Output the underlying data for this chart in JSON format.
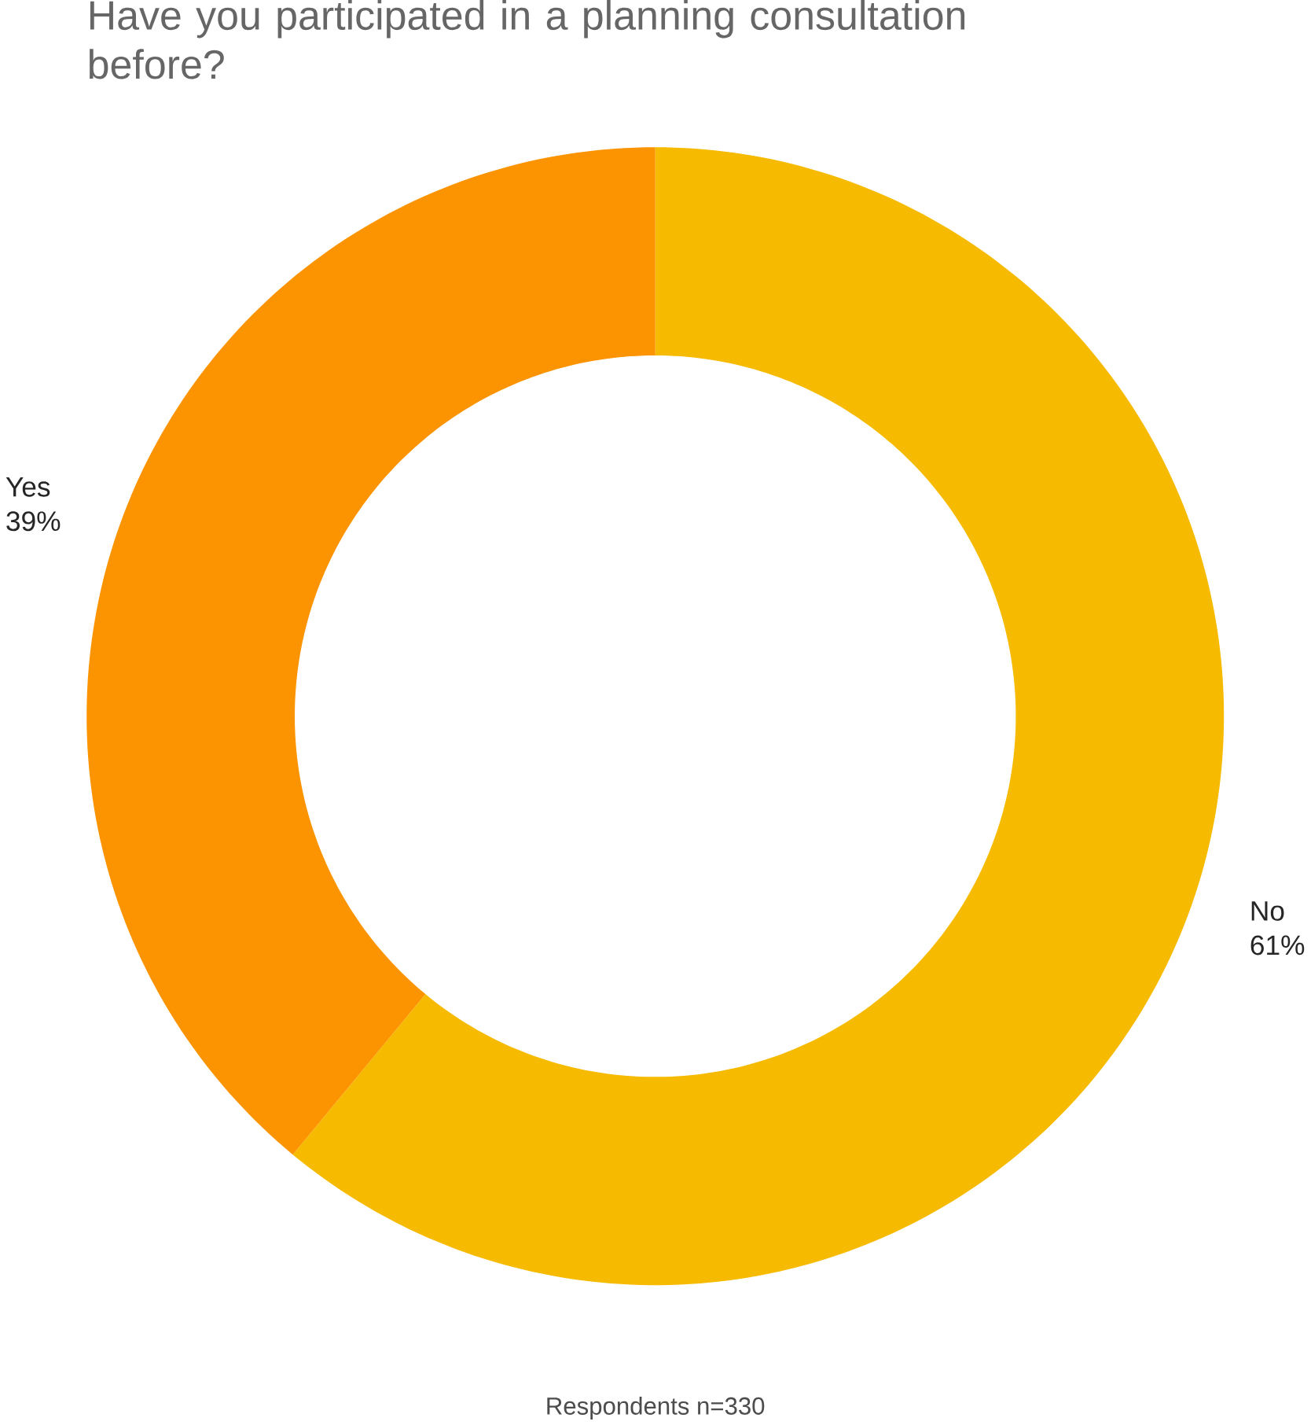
{
  "chart_data": {
    "type": "donut",
    "title": "Have you participated in a planning consultation before?",
    "categories": [
      "No",
      "Yes"
    ],
    "values": [
      61,
      39
    ],
    "colors": [
      "#f6bb00",
      "#fb9400"
    ],
    "value_labels": [
      "61%",
      "39%"
    ],
    "annotations": [
      "Respondents n=330"
    ]
  }
}
